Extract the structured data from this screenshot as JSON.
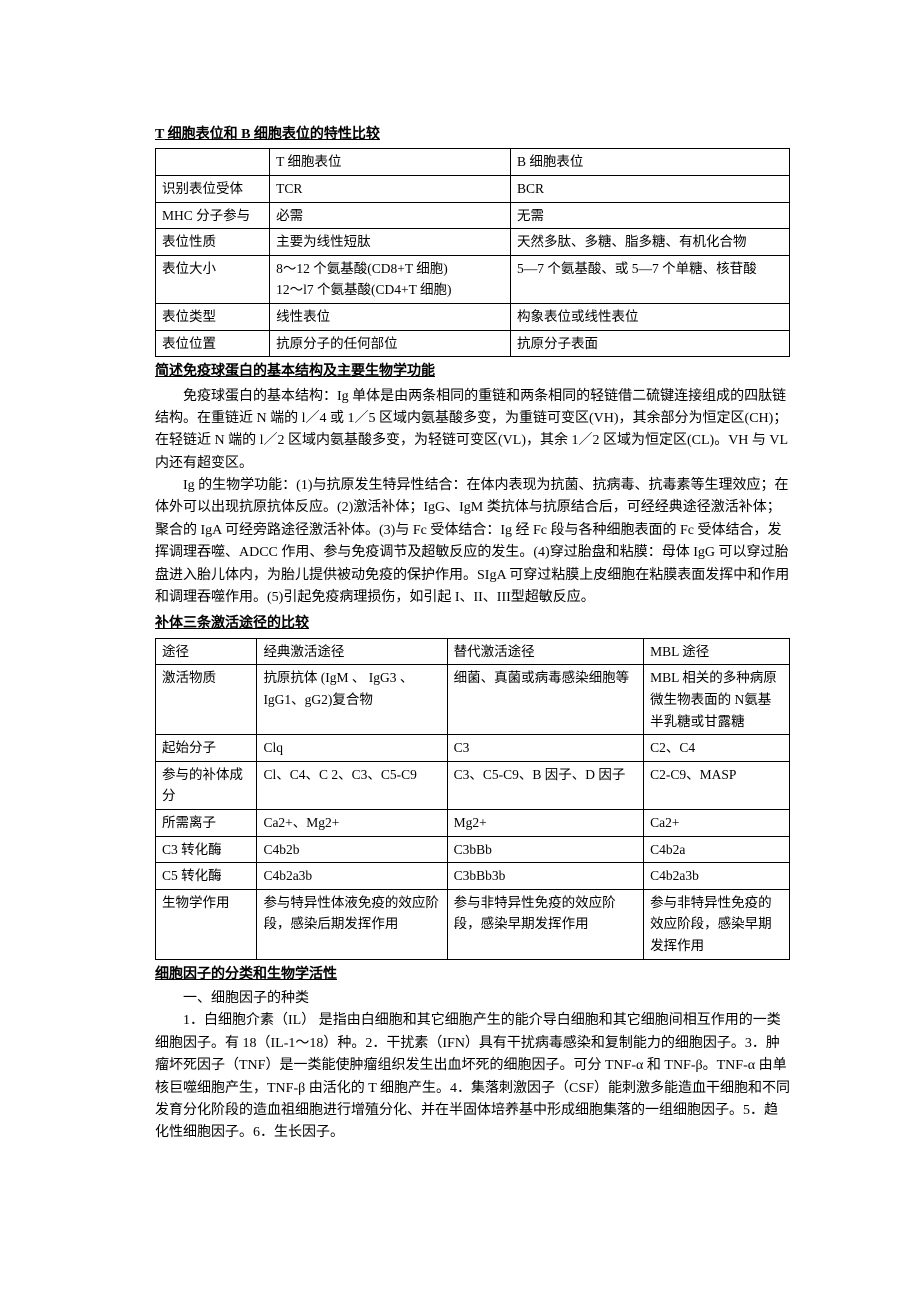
{
  "section1": {
    "heading": "T 细胞表位和 B 细胞表位的特性比较",
    "table": {
      "headers": [
        "",
        "T 细胞表位",
        "B 细胞表位"
      ],
      "rows": [
        [
          "识别表位受体",
          "TCR",
          "BCR"
        ],
        [
          "MHC 分子参与",
          "必需",
          "无需"
        ],
        [
          "表位性质",
          "主要为线性短肽",
          "天然多肽、多糖、脂多糖、有机化合物"
        ],
        [
          "表位大小",
          "8～12 个氨基酸(CD8+T 细胞)\n12～l7 个氨基酸(CD4+T 细胞)",
          "5—7 个氨基酸、或 5—7 个单糖、核苷酸"
        ],
        [
          "表位类型",
          "线性表位",
          "构象表位或线性表位"
        ],
        [
          "表位位置",
          "抗原分子的任何部位",
          "抗原分子表面"
        ]
      ]
    }
  },
  "section2": {
    "heading": "简述免疫球蛋白的基本结构及主要生物学功能",
    "para1": "免疫球蛋白的基本结构：Ig 单体是由两条相同的重链和两条相同的轻链借二硫键连接组成的四肽链结构。在重链近 N 端的 l／4 或 1／5 区域内氨基酸多变，为重链可变区(VH)，其余部分为恒定区(CH)；在轻链近 N 端的 l／2 区域内氨基酸多变，为轻链可变区(VL)，其余 1／2 区域为恒定区(CL)。VH 与 VL 内还有超变区。",
    "para2": "Ig 的生物学功能：(1)与抗原发生特异性结合：在体内表现为抗菌、抗病毒、抗毒素等生理效应；在体外可以出现抗原抗体反应。(2)激活补体；IgG、IgM 类抗体与抗原结合后，可经经典途径激活补体；聚合的 IgA 可经旁路途径激活补体。(3)与 Fc 受体结合：Ig 经 Fc 段与各种细胞表面的 Fc 受体结合，发挥调理吞噬、ADCC 作用、参与免疫调节及超敏反应的发生。(4)穿过胎盘和粘膜：母体 IgG 可以穿过胎盘进入胎儿体内，为胎儿提供被动免疫的保护作用。SIgA 可穿过粘膜上皮细胞在粘膜表面发挥中和作用和调理吞噬作用。(5)引起免疫病理损伤，如引起 I、II、III型超敏反应。"
  },
  "section3": {
    "heading": "补体三条激活途径的比较",
    "table": {
      "headers": [
        "途径",
        "经典激活途径",
        "替代激活途径",
        "MBL 途径"
      ],
      "rows": [
        [
          "激活物质",
          "抗原抗体  (IgM 、  IgG3 、IgG1、gG2)复合物",
          "细菌、真菌或病毒感染细胞等",
          "MBL 相关的多种病原微生物表面的 N氨基半乳糖或甘露糖"
        ],
        [
          "起始分子",
          "Clq",
          "C3",
          "C2、C4"
        ],
        [
          "参与的补体成分",
          "Cl、C4、C 2、C3、C5-C9",
          "C3、C5-C9、B 因子、D 因子",
          "C2-C9、MASP"
        ],
        [
          "所需离子",
          "Ca2+、Mg2+",
          "Mg2+",
          "Ca2+"
        ],
        [
          "C3 转化酶",
          "C4b2b",
          "C3bBb",
          "C4b2a"
        ],
        [
          "C5 转化酶",
          "C4b2a3b",
          "C3bBb3b",
          "C4b2a3b"
        ],
        [
          "生物学作用",
          "参与特异性体液免疫的效应阶段，感染后期发挥作用",
          "参与非特异性免疫的效应阶段，感染早期发挥作用",
          "参与非特异性免疫的效应阶段，感染早期发挥作用"
        ]
      ]
    }
  },
  "section4": {
    "heading": "细胞因子的分类和生物学活性 ",
    "para1": "一、细胞因子的种类",
    "para2": "1．白细胞介素（IL）  是指由白细胞和其它细胞产生的能介导白细胞和其它细胞间相互作用的一类细胞因子。有 18（IL-1～18）种。2．干扰素（IFN）具有干扰病毒感染和复制能力的细胞因子。3．肿瘤坏死因子（TNF）是一类能使肿瘤组织发生出血坏死的细胞因子。可分 TNF-α 和 TNF-β。TNF-α 由单核巨噬细胞产生，TNF-β 由活化的 T 细胞产生。4．集落刺激因子（CSF）能刺激多能造血干细胞和不同发育分化阶段的造血祖细胞进行增殖分化、并在半固体培养基中形成细胞集落的一组细胞因子。5．趋化性细胞因子。6．生长因子。"
  }
}
